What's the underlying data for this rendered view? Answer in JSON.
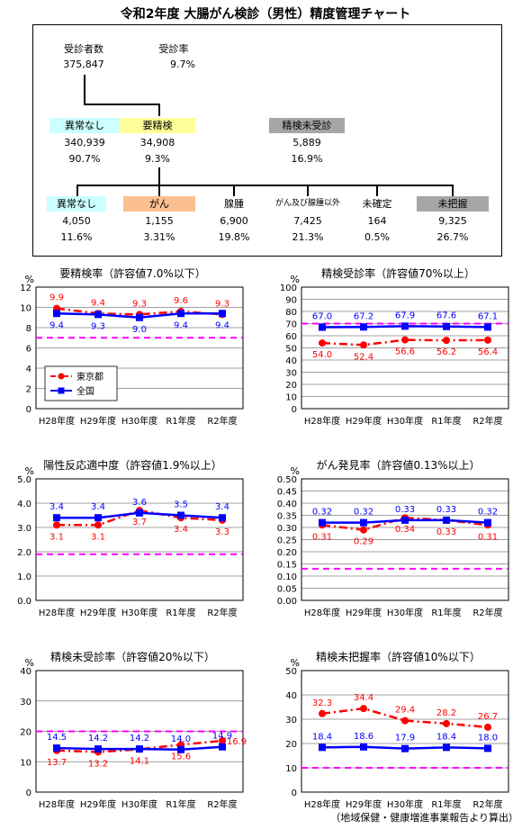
{
  "title": "令和2年度 大腸がん検診（男性）精度管理チャート",
  "flow": {
    "examinees": {
      "label": "受診者数",
      "value": "375,847"
    },
    "rate": {
      "label": "受診率",
      "value": "9.7%"
    },
    "normal1": {
      "label": "異常なし",
      "count": "340,939",
      "pct": "90.7%"
    },
    "need": {
      "label": "要精検",
      "count": "34,908",
      "pct": "9.3%"
    },
    "notexam": {
      "label": "精検未受診",
      "count": "5,889",
      "pct": "16.9%"
    },
    "normal2": {
      "label": "異常なし",
      "count": "4,050",
      "pct": "11.6%"
    },
    "cancer": {
      "label": "がん",
      "count": "1,155",
      "pct": "3.31%"
    },
    "adenoma": {
      "label": "腺腫",
      "count": "6,900",
      "pct": "19.8%"
    },
    "other": {
      "label": "がん及び腺腫以外",
      "count": "7,425",
      "pct": "21.3%"
    },
    "undetermined": {
      "label": "未確定",
      "count": "164",
      "pct": "0.5%"
    },
    "unknown": {
      "label": "未把握",
      "count": "9,325",
      "pct": "26.7%"
    }
  },
  "colors": {
    "tokyo": "#ff0000",
    "national": "#0000ff",
    "threshold": "#ff00ff",
    "normal_bg": "#ccffff",
    "need_bg": "#ffff99",
    "gray_bg": "#a6a6a6",
    "cancer_bg": "#fac090",
    "plot_border": "#000000"
  },
  "legend": {
    "tokyo": "東京都",
    "national": "全国"
  },
  "footnote": "（地域保健・健康増進事業報告より算出）",
  "chart_data": [
    {
      "type": "line",
      "title": "要精検率（許容値7.0%以下）",
      "unit": "%",
      "categories": [
        "H28年度",
        "H29年度",
        "H30年度",
        "R1年度",
        "R2年度"
      ],
      "ylim": [
        0,
        12
      ],
      "yticks": [
        "0",
        "2",
        "4",
        "6",
        "8",
        "10",
        "12"
      ],
      "threshold": 7.0,
      "series": [
        {
          "name": "東京都",
          "values": [
            9.9,
            9.4,
            9.3,
            9.6,
            9.3
          ],
          "labels": [
            "9.9",
            "9.4",
            "9.3",
            "9.6",
            "9.3"
          ]
        },
        {
          "name": "全国",
          "values": [
            9.4,
            9.3,
            9.0,
            9.4,
            9.4
          ],
          "labels": [
            "9.4",
            "9.3",
            "9.0",
            "9.4",
            "9.4"
          ]
        }
      ]
    },
    {
      "type": "line",
      "title": "精検受診率（許容値70%以上）",
      "unit": "%",
      "categories": [
        "H28年度",
        "H29年度",
        "H30年度",
        "R1年度",
        "R2年度"
      ],
      "ylim": [
        0,
        100
      ],
      "yticks": [
        "0",
        "10",
        "20",
        "30",
        "40",
        "50",
        "60",
        "70",
        "80",
        "90",
        "100"
      ],
      "threshold": 70,
      "series": [
        {
          "name": "東京都",
          "values": [
            54.0,
            52.4,
            56.6,
            56.2,
            56.4
          ],
          "labels": [
            "54.0",
            "52.4",
            "56.6",
            "56.2",
            "56.4"
          ]
        },
        {
          "name": "全国",
          "values": [
            67.0,
            67.2,
            67.9,
            67.6,
            67.1
          ],
          "labels": [
            "67.0",
            "67.2",
            "67.9",
            "67.6",
            "67.1"
          ]
        }
      ]
    },
    {
      "type": "line",
      "title": "陽性反応適中度（許容値1.9%以上）",
      "unit": "%",
      "categories": [
        "H28年度",
        "H29年度",
        "H30年度",
        "R1年度",
        "R2年度"
      ],
      "ylim": [
        0,
        5
      ],
      "yticks": [
        "0.0",
        "1.0",
        "2.0",
        "3.0",
        "4.0",
        "5.0"
      ],
      "threshold": 1.9,
      "series": [
        {
          "name": "東京都",
          "values": [
            3.1,
            3.1,
            3.7,
            3.4,
            3.3
          ],
          "labels": [
            "3.1",
            "3.1",
            "3.7",
            "3.4",
            "3.3"
          ]
        },
        {
          "name": "全国",
          "values": [
            3.4,
            3.4,
            3.6,
            3.5,
            3.4
          ],
          "labels": [
            "3.4",
            "3.4",
            "3.6",
            "3.5",
            "3.4"
          ]
        }
      ]
    },
    {
      "type": "line",
      "title": "がん発見率（許容値0.13%以上）",
      "unit": "%",
      "categories": [
        "H28年度",
        "H29年度",
        "H30年度",
        "R1年度",
        "R2年度"
      ],
      "ylim": [
        0,
        0.5
      ],
      "yticks": [
        "0.00",
        "0.05",
        "0.10",
        "0.15",
        "0.20",
        "0.25",
        "0.30",
        "0.35",
        "0.40",
        "0.45",
        "0.50"
      ],
      "threshold": 0.13,
      "series": [
        {
          "name": "東京都",
          "values": [
            0.31,
            0.29,
            0.34,
            0.33,
            0.31
          ],
          "labels": [
            "0.31",
            "0.29",
            "0.34",
            "0.33",
            "0.31"
          ]
        },
        {
          "name": "全国",
          "values": [
            0.32,
            0.32,
            0.33,
            0.33,
            0.32
          ],
          "labels": [
            "0.32",
            "0.32",
            "0.33",
            "0.33",
            "0.32"
          ]
        }
      ]
    },
    {
      "type": "line",
      "title": "精検未受診率（許容値20%以下）",
      "unit": "%",
      "categories": [
        "H28年度",
        "H29年度",
        "H30年度",
        "R1年度",
        "R2年度"
      ],
      "ylim": [
        0,
        40
      ],
      "yticks": [
        "0",
        "10",
        "20",
        "30",
        "40"
      ],
      "threshold": 20,
      "series": [
        {
          "name": "東京都",
          "values": [
            13.7,
            13.2,
            14.1,
            15.6,
            16.9
          ],
          "labels": [
            "13.7",
            "13.2",
            "14.1",
            "15.6",
            "16.9"
          ]
        },
        {
          "name": "全国",
          "values": [
            14.5,
            14.2,
            14.2,
            14.0,
            14.9
          ],
          "labels": [
            "14.5",
            "14.2",
            "14.2",
            "14.0",
            "14.9"
          ]
        }
      ]
    },
    {
      "type": "line",
      "title": "精検未把握率（許容値10%以下）",
      "unit": "%",
      "categories": [
        "H28年度",
        "H29年度",
        "H30年度",
        "R1年度",
        "R2年度"
      ],
      "ylim": [
        0,
        50
      ],
      "yticks": [
        "0",
        "10",
        "20",
        "30",
        "40",
        "50"
      ],
      "threshold": 10,
      "series": [
        {
          "name": "東京都",
          "values": [
            32.3,
            34.4,
            29.4,
            28.2,
            26.7
          ],
          "labels": [
            "32.3",
            "34.4",
            "29.4",
            "28.2",
            "26.7"
          ]
        },
        {
          "name": "全国",
          "values": [
            18.4,
            18.6,
            17.9,
            18.4,
            18.0
          ],
          "labels": [
            "18.4",
            "18.6",
            "17.9",
            "18.4",
            "18.0"
          ]
        }
      ]
    }
  ]
}
